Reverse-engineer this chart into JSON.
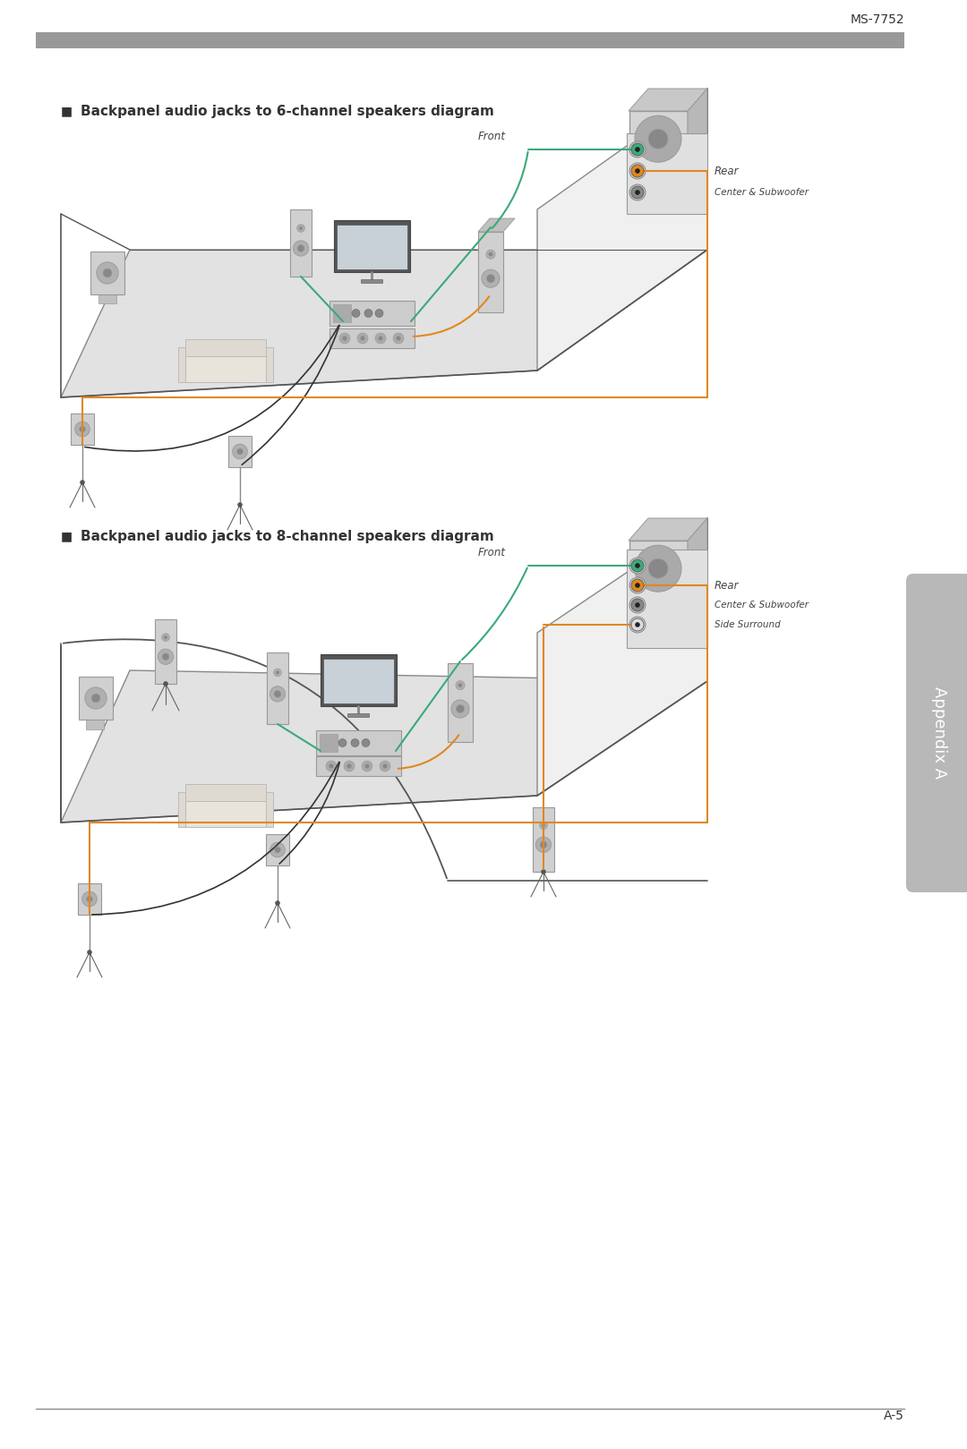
{
  "page_header": "MS-7752",
  "page_footer": "A-5",
  "appendix_label": "Appendix A",
  "section1_title": "Backpanel audio jacks to 6-channel speakers diagram",
  "section2_title": "Backpanel audio jacks to 8-channel speakers diagram",
  "bg_color": "#ffffff",
  "room_fill": "#e0e0e0",
  "dark_text": "#333333",
  "green_color": "#3aaa7a",
  "orange_color": "#e08820",
  "black_line": "#333333",
  "header_bar_color": "#a0a0a0",
  "appendix_tab_color": "#c0c0c0",
  "appendix_text_color": "#ffffff",
  "jack_green": "#3aaa7a",
  "jack_orange": "#e08820",
  "jack_gray": "#888888",
  "jack_white": "#dddddd",
  "speaker_fill": "#cccccc",
  "speaker_edge": "#888888"
}
